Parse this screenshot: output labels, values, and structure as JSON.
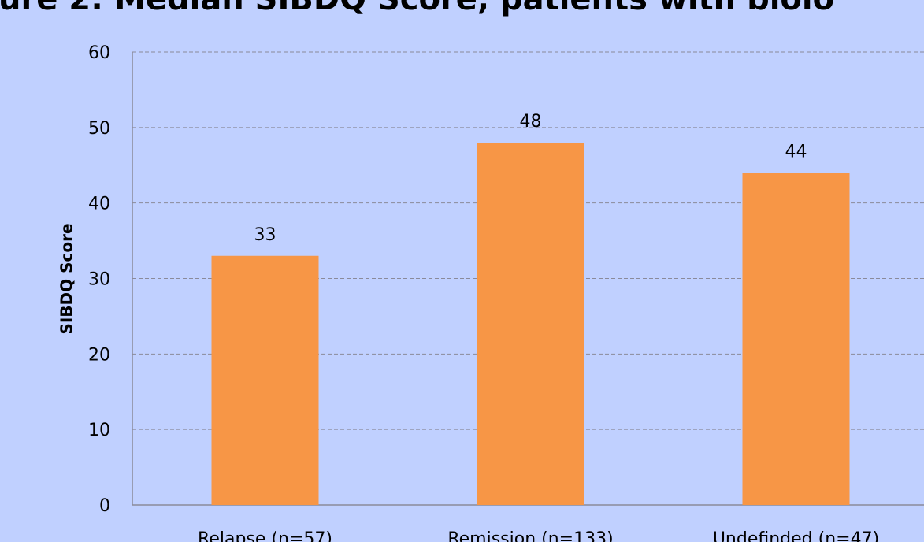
{
  "chart_data": {
    "type": "bar",
    "title": "ure 2: Median SIBDQ Score, patients with biolo",
    "y_label": "SIBDQ Score",
    "categories": [
      "Relapse (n=57)",
      "Remission (n=133)",
      "Undefinded (n=47)"
    ],
    "values": [
      33,
      48,
      44
    ],
    "color": "#f79646",
    "ylim": [
      0,
      60
    ],
    "yticks": [
      0,
      10,
      20,
      30,
      40,
      50,
      60
    ],
    "grid": true
  }
}
